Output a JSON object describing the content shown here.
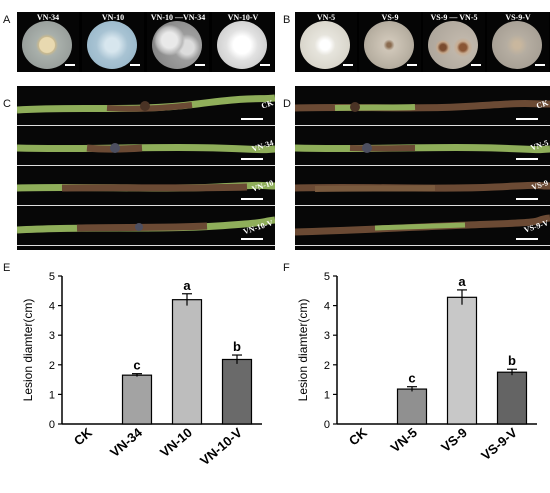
{
  "panels": {
    "A": {
      "letter": "A",
      "dishes": [
        {
          "label": "VN-34",
          "colony": "beige-rosette"
        },
        {
          "label": "VN-10",
          "colony": "bluish-mycelium"
        },
        {
          "label": "VN-10 —VN-34",
          "colony": "dual-culture"
        },
        {
          "label": "VN-10-V",
          "colony": "white-mycelium"
        }
      ]
    },
    "B": {
      "letter": "B",
      "dishes": [
        {
          "label": "VN-5",
          "colony": "white-center"
        },
        {
          "label": "VS-9",
          "colony": "dense-gray"
        },
        {
          "label": "VS-9 — VN-5",
          "colony": "dual-culture"
        },
        {
          "label": "VS-9-V",
          "colony": "gray-mycelium"
        }
      ]
    },
    "C": {
      "letter": "C",
      "rows": [
        "CK",
        "VN-34",
        "VN-10",
        "VN-10-V"
      ]
    },
    "D": {
      "letter": "D",
      "rows": [
        "CK",
        "VN-5",
        "VS-9",
        "VS-9-V"
      ]
    },
    "E": {
      "letter": "E"
    },
    "F": {
      "letter": "F"
    }
  },
  "colors": {
    "bar_light": "#bdbdbd",
    "bar_mid": "#9a9a9a",
    "bar_dark": "#5f5f5f",
    "stem_green": "#8fae5a",
    "stem_brown": "#6b4a34"
  },
  "chart_data": [
    {
      "type": "bar",
      "panel": "E",
      "ylabel": "Lesion diamter(cm)",
      "xlabel": "",
      "ylim": [
        0,
        5
      ],
      "yticks": [
        0,
        1,
        2,
        3,
        4,
        5
      ],
      "categories": [
        "CK",
        "VN-34",
        "VN-10",
        "VN-10-V"
      ],
      "values": [
        0,
        1.65,
        4.2,
        2.18
      ],
      "errors": [
        0,
        0.05,
        0.2,
        0.15
      ],
      "letters": [
        "",
        "c",
        "a",
        "b"
      ],
      "bar_colors": [
        "#ffffff",
        "#a3a3a3",
        "#bdbdbd",
        "#6a6a6a"
      ]
    },
    {
      "type": "bar",
      "panel": "F",
      "ylabel": "Lesion diamter(cm)",
      "xlabel": "",
      "ylim": [
        0,
        5
      ],
      "yticks": [
        0,
        1,
        2,
        3,
        4,
        5
      ],
      "categories": [
        "CK",
        "VN-5",
        "VS-9",
        "VS-9-V"
      ],
      "values": [
        0,
        1.18,
        4.28,
        1.75
      ],
      "errors": [
        0,
        0.08,
        0.25,
        0.1
      ],
      "letters": [
        "",
        "c",
        "a",
        "b"
      ],
      "bar_colors": [
        "#ffffff",
        "#909090",
        "#c8c8c8",
        "#646464"
      ]
    }
  ]
}
